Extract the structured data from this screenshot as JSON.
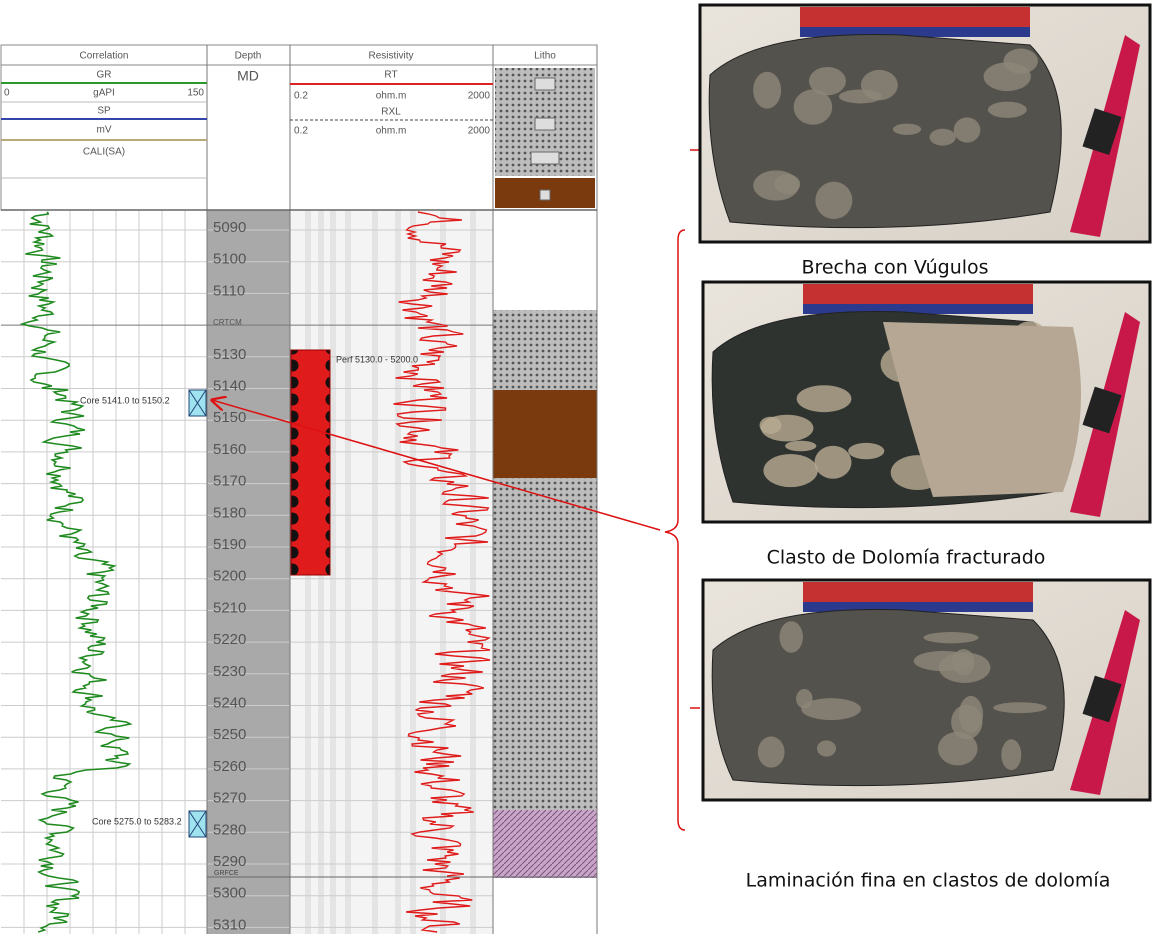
{
  "log": {
    "tracks": [
      "Correlation",
      "Depth",
      "Resistivity",
      "Litho"
    ],
    "correlation_header": {
      "gr": "GR",
      "gr_min": "0",
      "gr_unit": "gAPI",
      "gr_max": "150",
      "sp": "SP",
      "sp_unit": "mV",
      "cali": "CALI(SA)"
    },
    "depth_header": "MD",
    "resistivity_header": {
      "rt": "RT",
      "rt_min": "0.2",
      "rt_unit": "ohm.m",
      "rt_max": "2000",
      "rxl": "RXL",
      "rxl_min": "0.2",
      "rxl_unit": "ohm.m",
      "rxl_max": "2000"
    },
    "depth_labels": [
      "5090",
      "5100",
      "5110",
      "CRTCM",
      "5130",
      "5140",
      "5150",
      "5160",
      "5170",
      "5180",
      "5190",
      "5200",
      "5210",
      "5220",
      "5230",
      "5240",
      "5250",
      "5260",
      "5270",
      "5280",
      "5290",
      "5300",
      "5310"
    ],
    "marker": "GRFCE",
    "annotations": {
      "core_1": "Core 5141.0 to 5150.2",
      "perf": "Perf 5130.0 - 5200.0",
      "core_2": "Core 5275.0 to 5283.2"
    }
  },
  "photos": {
    "captions": [
      "Brecha con Vúgulos",
      "Clasto de Dolomía fracturado",
      "Laminación fina en clastos de dolomía"
    ]
  }
}
